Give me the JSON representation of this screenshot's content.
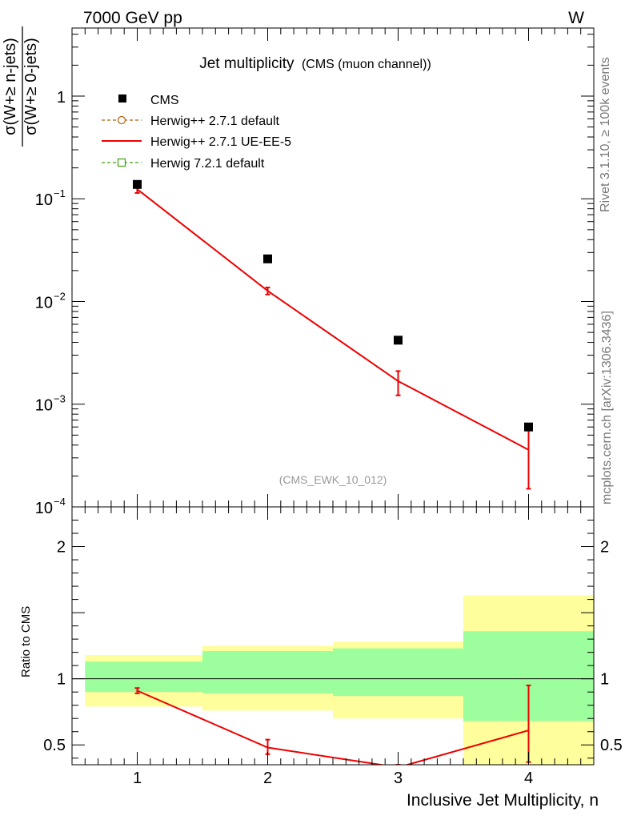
{
  "header": {
    "left": "7000 GeV pp",
    "right": "W"
  },
  "side_labels": {
    "rivet": "Rivet 3.1.10, ≥ 100k events",
    "mcplots": "mcplots.cern.ch [arXiv:1306.3436]"
  },
  "chart_data": [
    {
      "panel": "main",
      "type": "scatter",
      "title": "Jet multiplicity",
      "subtitle": "(CMS (muon channel))",
      "watermark": "(CMS_EWK_10_012)",
      "ylabel": "σ(W+≥ n-jets) / σ(W+≥ 0-jets)",
      "ylabel_numerator": "σ(W+≥ n-jets)",
      "ylabel_denominator": "σ(W+≥ 0-jets)",
      "yscale": "log",
      "xlim": [
        0.5,
        4.5
      ],
      "ylim": [
        0.0001,
        4.6
      ],
      "x_ticks": [
        1,
        2,
        3,
        4
      ],
      "y_tick_labels": [
        {
          "value": 1,
          "label": "1"
        },
        {
          "value": 0.1,
          "label": "10",
          "exp": "−1"
        },
        {
          "value": 0.01,
          "label": "10",
          "exp": "−2"
        },
        {
          "value": 0.001,
          "label": "10",
          "exp": "−3"
        },
        {
          "value": 0.0001,
          "label": "10",
          "exp": "−4"
        }
      ],
      "legend_position": "top-left",
      "legend": [
        {
          "name": "CMS",
          "style": "marker",
          "color": "#000000"
        },
        {
          "name": "Herwig++ 2.7.1 default",
          "style": "dashed-circle",
          "color": "#b25d0b"
        },
        {
          "name": "Herwig++ 2.7.1 UE-EE-5",
          "style": "line",
          "color": "#ee0000"
        },
        {
          "name": "Herwig 7.2.1 default",
          "style": "dashed-square",
          "color": "#3a9f0d"
        }
      ],
      "series": [
        {
          "name": "CMS",
          "x": [
            1,
            2,
            3,
            4
          ],
          "y": [
            0.138,
            0.026,
            0.0042,
            0.0006
          ]
        },
        {
          "name": "Herwig++ 2.7.1 UE-EE-5",
          "x": [
            1,
            2,
            3,
            4
          ],
          "y": [
            0.124,
            0.0127,
            0.00168,
            0.00036
          ],
          "yerr_low": [
            0.114,
            0.0117,
            0.00122,
            0.00015
          ],
          "yerr_high": [
            0.134,
            0.0137,
            0.0021,
            0.00058
          ]
        }
      ]
    },
    {
      "panel": "ratio",
      "type": "line",
      "ylabel": "Ratio to CMS",
      "xlabel": "Inclusive Jet Multiplicity, n",
      "xlim": [
        0.5,
        4.5
      ],
      "ylim": [
        0.35,
        2.3
      ],
      "x_ticks": [
        1,
        2,
        3,
        4
      ],
      "y_ticks": [
        0.5,
        1,
        2
      ],
      "bands": [
        {
          "x_low": 0.6,
          "x_high": 1.5,
          "inner": [
            0.9,
            1.13
          ],
          "outer": [
            0.79,
            1.18
          ]
        },
        {
          "x_low": 1.5,
          "x_high": 2.5,
          "inner": [
            0.89,
            1.21
          ],
          "outer": [
            0.76,
            1.25
          ]
        },
        {
          "x_low": 2.5,
          "x_high": 3.5,
          "inner": [
            0.87,
            1.23
          ],
          "outer": [
            0.7,
            1.28
          ]
        },
        {
          "x_low": 3.5,
          "x_high": 4.5,
          "inner": [
            0.68,
            1.36
          ],
          "outer": [
            0.35,
            1.63
          ]
        }
      ],
      "series": [
        {
          "name": "Herwig++ 2.7.1 UE-EE-5",
          "x": [
            1,
            2,
            3,
            4
          ],
          "y": [
            0.91,
            0.48,
            0.33,
            0.61
          ],
          "yerr_low": [
            0.89,
            0.43,
            0.31,
            0.37
          ],
          "yerr_high": [
            0.93,
            0.54,
            0.35,
            0.95
          ]
        }
      ]
    }
  ],
  "colors": {
    "data": "#000000",
    "model": "#ee0000",
    "band_inner": "#9cfe9c",
    "band_outer": "#fefe9c",
    "watermark": "#999999",
    "side_label": "#777777"
  }
}
